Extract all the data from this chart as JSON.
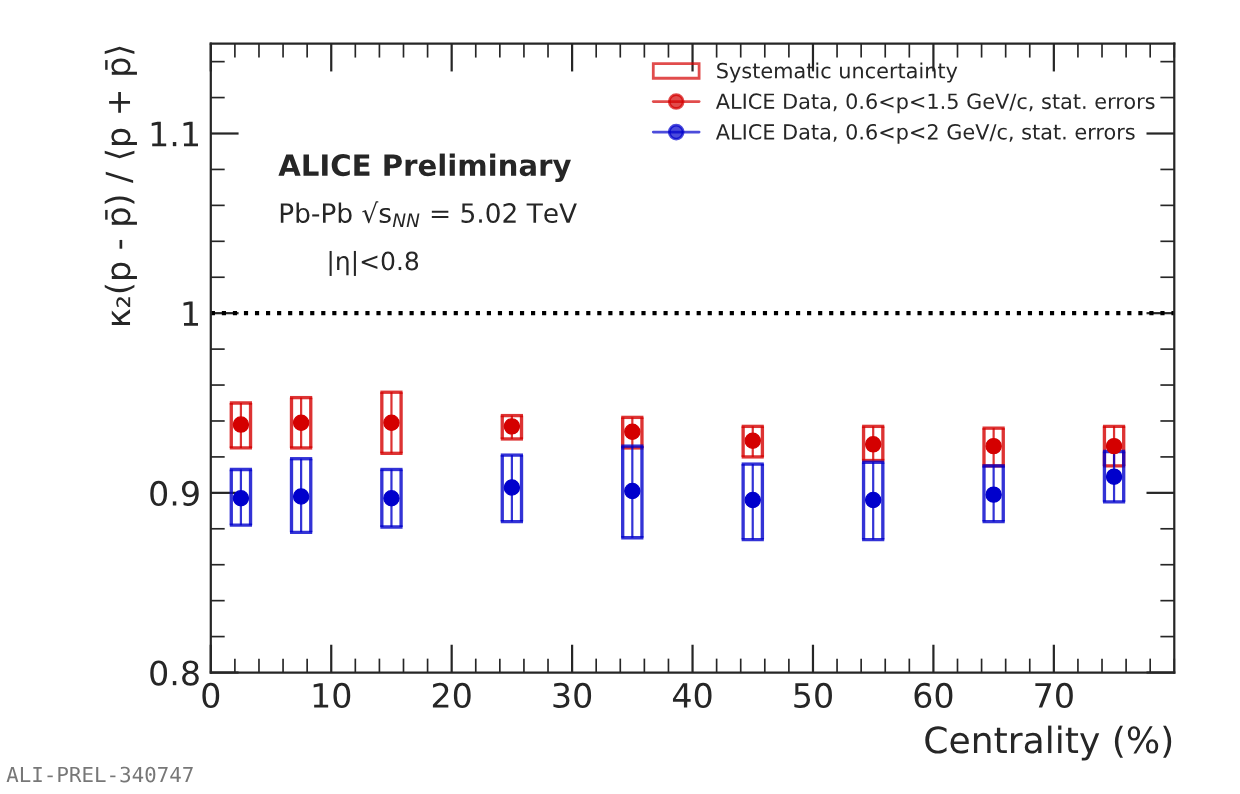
{
  "chart_data": {
    "type": "scatter",
    "xlabel": "Centrality (%)",
    "ylabel": "κ₂(p - p̄) / ⟨p + p̄⟩",
    "x": [
      2.5,
      7.5,
      15,
      25,
      35,
      45,
      55,
      65,
      75
    ],
    "series": [
      {
        "name": "ALICE Data, 0.6<p<1.5 GeV/c, stat. errors",
        "color": "#d40000",
        "values": [
          0.938,
          0.939,
          0.939,
          0.937,
          0.934,
          0.929,
          0.927,
          0.926,
          0.926
        ],
        "errors": [
          [
            0.925,
            0.95
          ],
          [
            0.925,
            0.953
          ],
          [
            0.922,
            0.956
          ],
          [
            0.93,
            0.943
          ],
          [
            0.925,
            0.942
          ],
          [
            0.92,
            0.937
          ],
          [
            0.918,
            0.937
          ],
          [
            0.915,
            0.936
          ],
          [
            0.915,
            0.937
          ]
        ]
      },
      {
        "name": "ALICE Data, 0.6<p<2 GeV/c, stat. errors",
        "color": "#0000cc",
        "values": [
          0.897,
          0.898,
          0.897,
          0.903,
          0.901,
          0.896,
          0.896,
          0.899,
          0.909
        ],
        "errors": [
          [
            0.882,
            0.913
          ],
          [
            0.878,
            0.919
          ],
          [
            0.881,
            0.913
          ],
          [
            0.884,
            0.921
          ],
          [
            0.875,
            0.926
          ],
          [
            0.874,
            0.916
          ],
          [
            0.874,
            0.917
          ],
          [
            0.884,
            0.915
          ],
          [
            0.895,
            0.923
          ]
        ]
      }
    ],
    "xlim": [
      0,
      80
    ],
    "ylim": [
      0.8,
      1.15
    ],
    "xticks": [
      0,
      10,
      20,
      30,
      40,
      50,
      60,
      70
    ],
    "yticks": [
      0.8,
      0.9,
      1,
      1.1
    ],
    "ref_lines": [
      {
        "axis": "y",
        "value": 1,
        "color": "#000000",
        "line_style": "dotted"
      }
    ],
    "annotations": [
      "ALICE Preliminary",
      "Pb-Pb √s$_{NN}$ = 5.02 TeV",
      "|η|<0.8",
      "ALI-PREL-340747"
    ],
    "legend": "top right",
    "legend_title": "Systematic uncertainty",
    "marker": "circle",
    "grid": false
  }
}
